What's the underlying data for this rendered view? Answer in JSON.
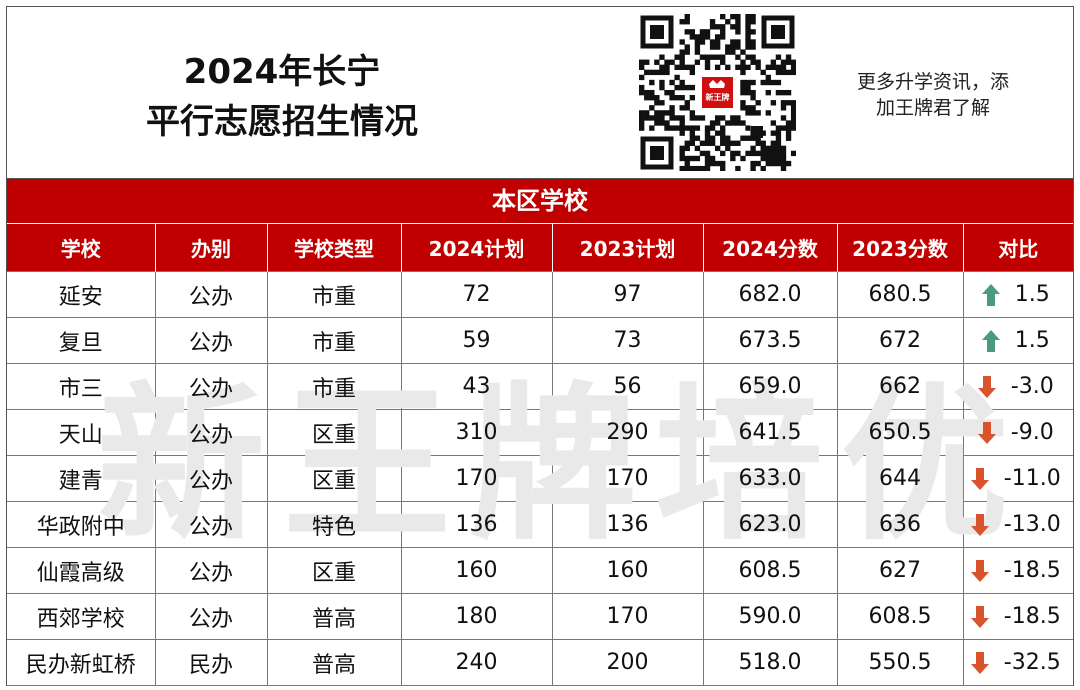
{
  "header": {
    "title_line1": "2024年长宁",
    "title_line2": "平行志愿招生情况",
    "promo_line1": "更多升学资讯，添",
    "promo_line2": "加王牌君了解",
    "qr_logo": "新王牌"
  },
  "section_title": "本区学校",
  "watermark": "新王牌培优",
  "colors": {
    "header_red": "#c00000",
    "up_arrow": "#4a9b7d",
    "down_arrow": "#d9542c"
  },
  "table": {
    "columns": [
      "学校",
      "办别",
      "学校类型",
      "2024计划",
      "2023计划",
      "2024分数",
      "2023分数",
      "对比"
    ],
    "rows": [
      {
        "school": "延安",
        "type": "公办",
        "category": "市重",
        "plan2024": "72",
        "plan2023": "97",
        "score2024": "682.0",
        "score2023": "680.5",
        "trend": "up",
        "diff": "1.5"
      },
      {
        "school": "复旦",
        "type": "公办",
        "category": "市重",
        "plan2024": "59",
        "plan2023": "73",
        "score2024": "673.5",
        "score2023": "672",
        "trend": "up",
        "diff": "1.5"
      },
      {
        "school": "市三",
        "type": "公办",
        "category": "市重",
        "plan2024": "43",
        "plan2023": "56",
        "score2024": "659.0",
        "score2023": "662",
        "trend": "down",
        "diff": "-3.0"
      },
      {
        "school": "天山",
        "type": "公办",
        "category": "区重",
        "plan2024": "310",
        "plan2023": "290",
        "score2024": "641.5",
        "score2023": "650.5",
        "trend": "down",
        "diff": "-9.0"
      },
      {
        "school": "建青",
        "type": "公办",
        "category": "区重",
        "plan2024": "170",
        "plan2023": "170",
        "score2024": "633.0",
        "score2023": "644",
        "trend": "down",
        "diff": "-11.0"
      },
      {
        "school": "华政附中",
        "type": "公办",
        "category": "特色",
        "plan2024": "136",
        "plan2023": "136",
        "score2024": "623.0",
        "score2023": "636",
        "trend": "down",
        "diff": "-13.0"
      },
      {
        "school": "仙霞高级",
        "type": "公办",
        "category": "区重",
        "plan2024": "160",
        "plan2023": "160",
        "score2024": "608.5",
        "score2023": "627",
        "trend": "down",
        "diff": "-18.5"
      },
      {
        "school": "西郊学校",
        "type": "公办",
        "category": "普高",
        "plan2024": "180",
        "plan2023": "170",
        "score2024": "590.0",
        "score2023": "608.5",
        "trend": "down",
        "diff": "-18.5"
      },
      {
        "school": "民办新虹桥",
        "type": "民办",
        "category": "普高",
        "plan2024": "240",
        "plan2023": "200",
        "score2024": "518.0",
        "score2023": "550.5",
        "trend": "down",
        "diff": "-32.5"
      }
    ]
  }
}
